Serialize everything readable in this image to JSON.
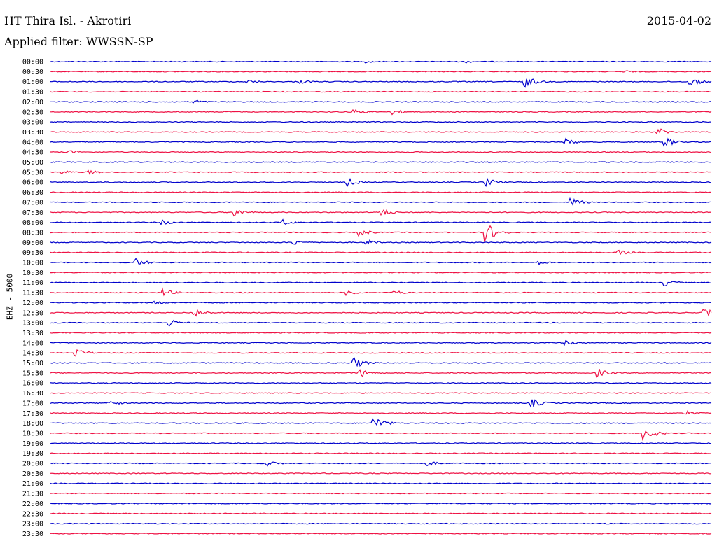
{
  "header": {
    "station": "HT Thira Isl. - Akrotiri",
    "date": "2015-04-02",
    "filter": "Applied filter: WWSSN-SP"
  },
  "chart_data": {
    "type": "line",
    "title": "HT Thira Isl. - Akrotiri",
    "subtitle": "Applied filter: WWSSN-SP",
    "ylabel": "EHZ - 5000",
    "grid": false,
    "colors": [
      "#0000cc",
      "#ee1144"
    ],
    "rows": [
      {
        "label": "00:00",
        "events": [
          {
            "t": 0.48,
            "amp": 2
          },
          {
            "t": 0.63,
            "amp": 2
          }
        ]
      },
      {
        "label": "00:30",
        "events": [
          {
            "t": 0.87,
            "amp": 2
          }
        ]
      },
      {
        "label": "01:00",
        "events": [
          {
            "t": 0.3,
            "amp": 3
          },
          {
            "t": 0.38,
            "amp": 3
          },
          {
            "t": 0.72,
            "amp": 8
          },
          {
            "t": 0.97,
            "amp": 6
          }
        ]
      },
      {
        "label": "01:30",
        "events": []
      },
      {
        "label": "02:00",
        "events": [
          {
            "t": 0.22,
            "amp": 3
          }
        ]
      },
      {
        "label": "02:30",
        "events": [
          {
            "t": 0.46,
            "amp": 4
          },
          {
            "t": 0.52,
            "amp": 4
          }
        ]
      },
      {
        "label": "03:00",
        "events": []
      },
      {
        "label": "03:30",
        "events": [
          {
            "t": 0.92,
            "amp": 6
          }
        ]
      },
      {
        "label": "04:00",
        "events": [
          {
            "t": 0.78,
            "amp": 5
          },
          {
            "t": 0.93,
            "amp": 7
          }
        ]
      },
      {
        "label": "04:30",
        "events": [
          {
            "t": 0.03,
            "amp": 3
          }
        ]
      },
      {
        "label": "05:00",
        "events": []
      },
      {
        "label": "05:30",
        "events": [
          {
            "t": 0.02,
            "amp": 3
          },
          {
            "t": 0.06,
            "amp": 3
          }
        ]
      },
      {
        "label": "06:00",
        "events": [
          {
            "t": 0.45,
            "amp": 6
          },
          {
            "t": 0.66,
            "amp": 6
          }
        ]
      },
      {
        "label": "06:30",
        "events": []
      },
      {
        "label": "07:00",
        "events": [
          {
            "t": 0.79,
            "amp": 6
          }
        ]
      },
      {
        "label": "07:30",
        "events": [
          {
            "t": 0.28,
            "amp": 6
          },
          {
            "t": 0.5,
            "amp": 6
          }
        ]
      },
      {
        "label": "08:00",
        "events": [
          {
            "t": 0.17,
            "amp": 4
          },
          {
            "t": 0.35,
            "amp": 5
          }
        ]
      },
      {
        "label": "08:30",
        "events": [
          {
            "t": 0.47,
            "amp": 5
          },
          {
            "t": 0.66,
            "amp": 14
          }
        ]
      },
      {
        "label": "09:00",
        "events": [
          {
            "t": 0.37,
            "amp": 4
          },
          {
            "t": 0.48,
            "amp": 4
          }
        ]
      },
      {
        "label": "09:30",
        "events": [
          {
            "t": 0.86,
            "amp": 4
          }
        ]
      },
      {
        "label": "10:00",
        "events": [
          {
            "t": 0.13,
            "amp": 6
          },
          {
            "t": 0.74,
            "amp": 3
          }
        ]
      },
      {
        "label": "10:30",
        "events": []
      },
      {
        "label": "11:00",
        "events": [
          {
            "t": 0.93,
            "amp": 5
          }
        ]
      },
      {
        "label": "11:30",
        "events": [
          {
            "t": 0.17,
            "amp": 6
          },
          {
            "t": 0.45,
            "amp": 4
          },
          {
            "t": 0.52,
            "amp": 4
          }
        ]
      },
      {
        "label": "12:00",
        "events": [
          {
            "t": 0.16,
            "amp": 3
          }
        ]
      },
      {
        "label": "12:30",
        "events": [
          {
            "t": 0.22,
            "amp": 6
          },
          {
            "t": 0.99,
            "amp": 6
          }
        ]
      },
      {
        "label": "13:00",
        "events": [
          {
            "t": 0.18,
            "amp": 6
          }
        ]
      },
      {
        "label": "13:30",
        "events": []
      },
      {
        "label": "14:00",
        "events": [
          {
            "t": 0.78,
            "amp": 4
          }
        ]
      },
      {
        "label": "14:30",
        "events": [
          {
            "t": 0.04,
            "amp": 6
          }
        ]
      },
      {
        "label": "15:00",
        "events": [
          {
            "t": 0.46,
            "amp": 8
          }
        ]
      },
      {
        "label": "15:30",
        "events": [
          {
            "t": 0.47,
            "amp": 6
          },
          {
            "t": 0.83,
            "amp": 6
          }
        ]
      },
      {
        "label": "16:00",
        "events": []
      },
      {
        "label": "16:30",
        "events": []
      },
      {
        "label": "17:00",
        "events": [
          {
            "t": 0.09,
            "amp": 4
          },
          {
            "t": 0.73,
            "amp": 6
          }
        ]
      },
      {
        "label": "17:30",
        "events": [
          {
            "t": 0.96,
            "amp": 4
          }
        ]
      },
      {
        "label": "18:00",
        "events": [
          {
            "t": 0.49,
            "amp": 10
          }
        ]
      },
      {
        "label": "18:30",
        "events": [
          {
            "t": 0.9,
            "amp": 10
          }
        ]
      },
      {
        "label": "19:00",
        "events": []
      },
      {
        "label": "19:30",
        "events": []
      },
      {
        "label": "20:00",
        "events": [
          {
            "t": 0.33,
            "amp": 4
          },
          {
            "t": 0.57,
            "amp": 4
          }
        ]
      },
      {
        "label": "20:30",
        "events": []
      },
      {
        "label": "21:00",
        "events": []
      },
      {
        "label": "21:30",
        "events": []
      },
      {
        "label": "22:00",
        "events": []
      },
      {
        "label": "22:30",
        "events": []
      },
      {
        "label": "23:00",
        "events": []
      },
      {
        "label": "23:30",
        "events": []
      }
    ]
  }
}
